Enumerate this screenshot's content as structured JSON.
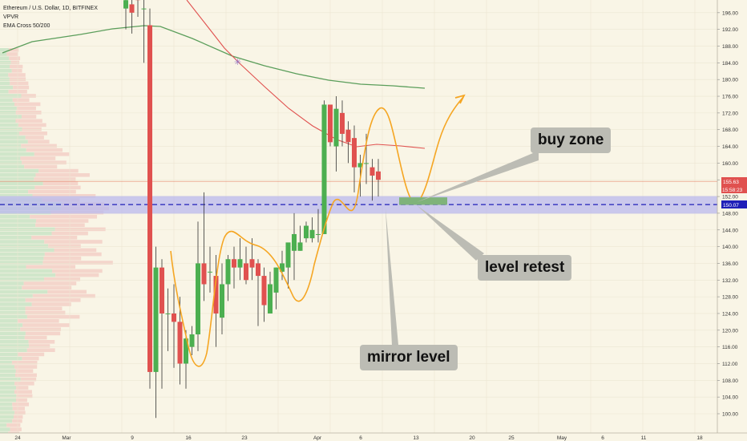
{
  "legend": {
    "title": "Ethereum / U.S. Dollar, 1D, BITFINEX",
    "indicator1": "VPVR",
    "indicator2": "EMA Cross 50/200"
  },
  "annotations": {
    "buy_zone": "buy zone",
    "level_retest": "level retest",
    "mirror_level": "mirror level"
  },
  "price_tags": {
    "last_price": "155.63",
    "countdown": "15:58:23",
    "level": "150.07"
  },
  "colors": {
    "up": "#4caf50",
    "down": "#e0514f",
    "ema_fast": "#e0514f",
    "ema_slow": "#5b9e5b",
    "orange_path": "#f5a623",
    "level_band": "#b9b8ee",
    "level_line": "#1f1fb8",
    "buy_zone": "#7fb37a"
  },
  "chart_data": {
    "type": "candlestick",
    "x_tick_labels": [
      "24",
      "Mar",
      "9",
      "16",
      "23",
      "Apr",
      "6",
      "13",
      "20",
      "25",
      "May",
      "6",
      "11",
      "18"
    ],
    "y_tick_labels": [
      "100.00",
      "104.00",
      "108.00",
      "112.00",
      "116.00",
      "120.00",
      "124.00",
      "128.00",
      "132.00",
      "136.00",
      "140.00",
      "144.00",
      "148.00",
      "152.00",
      "156.00",
      "160.00",
      "164.00",
      "168.00",
      "172.00",
      "176.00",
      "180.00",
      "184.00",
      "188.00",
      "192.00",
      "196.00"
    ],
    "ylim": [
      98,
      199
    ],
    "horizontal_level": 150.07,
    "last_price": 155.63,
    "buy_zone_range": [
      150.0,
      151.8
    ],
    "candles": [
      {
        "o": 197,
        "h": 200,
        "l": 192,
        "c": 199
      },
      {
        "o": 198,
        "h": 200,
        "l": 191,
        "c": 196
      },
      {
        "o": 200,
        "h": 200,
        "l": 195,
        "c": 199
      },
      {
        "o": 197,
        "h": 200,
        "l": 184,
        "c": 197
      },
      {
        "o": 193,
        "h": 197,
        "l": 106,
        "c": 110
      },
      {
        "o": 110,
        "h": 140,
        "l": 99,
        "c": 135
      },
      {
        "o": 135,
        "h": 137,
        "l": 106,
        "c": 124
      },
      {
        "o": 124,
        "h": 130,
        "l": 115,
        "c": 124
      },
      {
        "o": 124,
        "h": 131,
        "l": 111,
        "c": 122
      },
      {
        "o": 122,
        "h": 128,
        "l": 107,
        "c": 112
      },
      {
        "o": 112,
        "h": 120,
        "l": 106,
        "c": 118
      },
      {
        "o": 116,
        "h": 121,
        "l": 114,
        "c": 119
      },
      {
        "o": 119,
        "h": 146,
        "l": 115,
        "c": 136
      },
      {
        "o": 136,
        "h": 153,
        "l": 127,
        "c": 131
      },
      {
        "o": 134,
        "h": 140,
        "l": 129,
        "c": 134
      },
      {
        "o": 133,
        "h": 138,
        "l": 116,
        "c": 124
      },
      {
        "o": 123,
        "h": 136,
        "l": 119,
        "c": 131
      },
      {
        "o": 131,
        "h": 138,
        "l": 127,
        "c": 137
      },
      {
        "o": 137,
        "h": 140,
        "l": 130,
        "c": 135
      },
      {
        "o": 135,
        "h": 142,
        "l": 132,
        "c": 137
      },
      {
        "o": 136,
        "h": 140,
        "l": 131,
        "c": 132
      },
      {
        "o": 137,
        "h": 142,
        "l": 132,
        "c": 135
      },
      {
        "o": 136,
        "h": 137,
        "l": 121,
        "c": 133
      },
      {
        "o": 133,
        "h": 135,
        "l": 122,
        "c": 126
      },
      {
        "o": 124,
        "h": 134,
        "l": 124,
        "c": 131
      },
      {
        "o": 129,
        "h": 135,
        "l": 125,
        "c": 135
      },
      {
        "o": 134,
        "h": 139,
        "l": 132,
        "c": 136
      },
      {
        "o": 135,
        "h": 140,
        "l": 130,
        "c": 141
      },
      {
        "o": 139,
        "h": 148,
        "l": 132,
        "c": 143
      },
      {
        "o": 139,
        "h": 145,
        "l": 139,
        "c": 141
      },
      {
        "o": 142,
        "h": 146,
        "l": 141,
        "c": 145
      },
      {
        "o": 142,
        "h": 147,
        "l": 141,
        "c": 144
      },
      {
        "o": 143,
        "h": 149,
        "l": 141,
        "c": 143
      },
      {
        "o": 143,
        "h": 175,
        "l": 143,
        "c": 174
      },
      {
        "o": 174,
        "h": 174,
        "l": 164,
        "c": 165
      },
      {
        "o": 164,
        "h": 176,
        "l": 158,
        "c": 173
      },
      {
        "o": 172,
        "h": 175,
        "l": 164,
        "c": 167
      },
      {
        "o": 168,
        "h": 170,
        "l": 160,
        "c": 165
      },
      {
        "o": 166,
        "h": 169,
        "l": 153,
        "c": 159
      },
      {
        "o": 159,
        "h": 162,
        "l": 152,
        "c": 160
      },
      {
        "o": 160,
        "h": 167,
        "l": 155,
        "c": 160
      },
      {
        "o": 159,
        "h": 161,
        "l": 151,
        "c": 157
      },
      {
        "o": 158,
        "h": 161,
        "l": 152,
        "c": 156
      }
    ]
  }
}
